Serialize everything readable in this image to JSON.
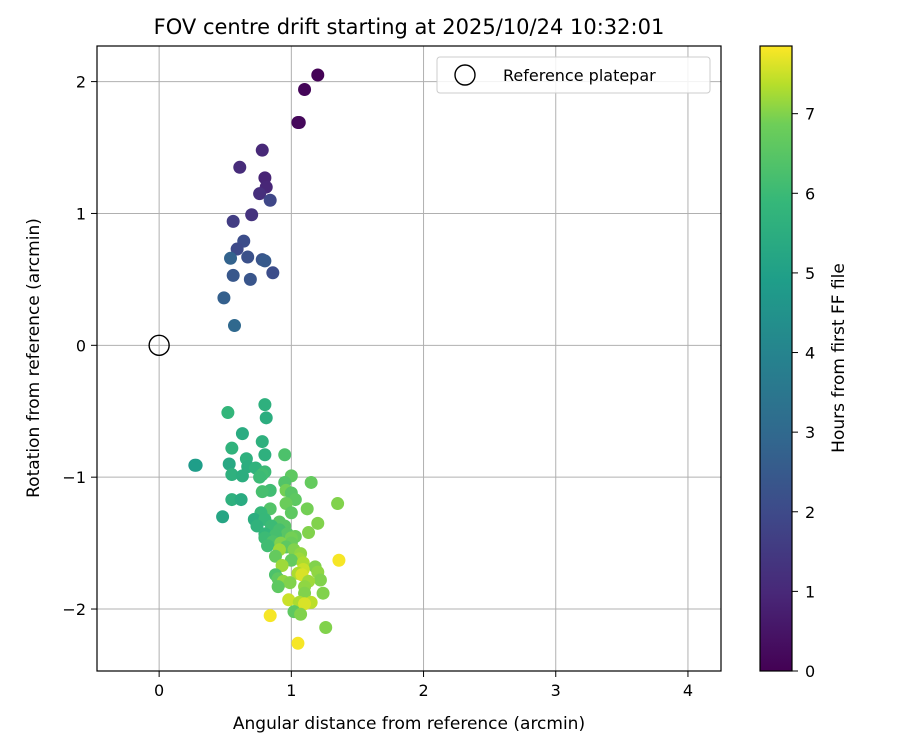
{
  "chart_data": {
    "type": "scatter",
    "title": "FOV centre drift starting at 2025/10/24 10:32:01",
    "xlabel": "Angular distance from reference (arcmin)",
    "ylabel": "Rotation from reference (arcmin)",
    "xlim": [
      -0.47,
      4.25
    ],
    "ylim": [
      -2.47,
      2.27
    ],
    "xticks": [
      0,
      1,
      2,
      3,
      4
    ],
    "yticks": [
      -2,
      -1,
      0,
      1,
      2
    ],
    "xtick_labels": [
      "0",
      "1",
      "2",
      "3",
      "4"
    ],
    "ytick_labels": [
      "−2",
      "−1",
      "0",
      "1",
      "2"
    ],
    "grid": true,
    "legend": {
      "placement": "top-right",
      "entries": [
        {
          "label": "Reference platepar",
          "marker": "open-circle"
        }
      ]
    },
    "reference_point": {
      "x": 0,
      "y": 0
    },
    "colorbar": {
      "label": "Hours from first FF file",
      "colormap": "viridis",
      "range": [
        0,
        7.85
      ],
      "ticks": [
        0,
        1,
        2,
        3,
        4,
        5,
        6,
        7
      ],
      "tick_labels": [
        "0",
        "1",
        "2",
        "3",
        "4",
        "5",
        "6",
        "7"
      ]
    },
    "points": [
      {
        "x": 1.2,
        "y": 2.05,
        "c": 0.05
      },
      {
        "x": 1.1,
        "y": 1.94,
        "c": 0.1
      },
      {
        "x": 1.05,
        "y": 1.69,
        "c": 0.15
      },
      {
        "x": 1.06,
        "y": 1.69,
        "c": 0.2
      },
      {
        "x": 0.78,
        "y": 1.48,
        "c": 1.0
      },
      {
        "x": 0.61,
        "y": 1.35,
        "c": 1.1
      },
      {
        "x": 0.8,
        "y": 1.27,
        "c": 0.9
      },
      {
        "x": 0.81,
        "y": 1.2,
        "c": 0.95
      },
      {
        "x": 0.76,
        "y": 1.15,
        "c": 1.2
      },
      {
        "x": 0.84,
        "y": 1.1,
        "c": 1.9
      },
      {
        "x": 0.7,
        "y": 0.99,
        "c": 1.3
      },
      {
        "x": 0.56,
        "y": 0.94,
        "c": 1.6
      },
      {
        "x": 0.64,
        "y": 0.79,
        "c": 2.1
      },
      {
        "x": 0.59,
        "y": 0.73,
        "c": 2.0
      },
      {
        "x": 0.67,
        "y": 0.67,
        "c": 2.2
      },
      {
        "x": 0.54,
        "y": 0.66,
        "c": 2.8
      },
      {
        "x": 0.78,
        "y": 0.65,
        "c": 2.3
      },
      {
        "x": 0.8,
        "y": 0.64,
        "c": 2.5
      },
      {
        "x": 0.86,
        "y": 0.55,
        "c": 2.1
      },
      {
        "x": 0.56,
        "y": 0.53,
        "c": 2.4
      },
      {
        "x": 0.69,
        "y": 0.5,
        "c": 2.35
      },
      {
        "x": 0.49,
        "y": 0.36,
        "c": 2.7
      },
      {
        "x": 0.57,
        "y": 0.15,
        "c": 3.0
      },
      {
        "x": 0.8,
        "y": -0.45,
        "c": 5.6
      },
      {
        "x": 0.52,
        "y": -0.51,
        "c": 5.8
      },
      {
        "x": 0.81,
        "y": -0.55,
        "c": 5.5
      },
      {
        "x": 0.63,
        "y": -0.67,
        "c": 5.4
      },
      {
        "x": 0.78,
        "y": -0.73,
        "c": 5.6
      },
      {
        "x": 0.55,
        "y": -0.78,
        "c": 5.7
      },
      {
        "x": 0.8,
        "y": -0.83,
        "c": 5.6
      },
      {
        "x": 0.95,
        "y": -0.83,
        "c": 6.3
      },
      {
        "x": 0.66,
        "y": -0.86,
        "c": 5.6
      },
      {
        "x": 0.27,
        "y": -0.91,
        "c": 4.7
      },
      {
        "x": 0.28,
        "y": -0.91,
        "c": 4.9
      },
      {
        "x": 0.53,
        "y": -0.9,
        "c": 5.3
      },
      {
        "x": 0.67,
        "y": -0.92,
        "c": 5.5
      },
      {
        "x": 0.73,
        "y": -0.93,
        "c": 5.7
      },
      {
        "x": 0.8,
        "y": -0.96,
        "c": 6.0
      },
      {
        "x": 0.78,
        "y": -0.98,
        "c": 6.1
      },
      {
        "x": 0.55,
        "y": -0.98,
        "c": 5.6
      },
      {
        "x": 0.63,
        "y": -0.99,
        "c": 5.5
      },
      {
        "x": 1.0,
        "y": -0.99,
        "c": 6.6
      },
      {
        "x": 0.76,
        "y": -1.0,
        "c": 6.0
      },
      {
        "x": 0.95,
        "y": -1.04,
        "c": 6.4
      },
      {
        "x": 1.15,
        "y": -1.04,
        "c": 6.7
      },
      {
        "x": 0.84,
        "y": -1.1,
        "c": 6.1
      },
      {
        "x": 0.96,
        "y": -1.1,
        "c": 6.9
      },
      {
        "x": 0.78,
        "y": -1.11,
        "c": 6.2
      },
      {
        "x": 1.0,
        "y": -1.12,
        "c": 6.5
      },
      {
        "x": 0.55,
        "y": -1.17,
        "c": 5.6
      },
      {
        "x": 0.62,
        "y": -1.17,
        "c": 5.4
      },
      {
        "x": 1.03,
        "y": -1.17,
        "c": 6.6
      },
      {
        "x": 0.96,
        "y": -1.2,
        "c": 6.8
      },
      {
        "x": 1.35,
        "y": -1.2,
        "c": 7.0
      },
      {
        "x": 0.84,
        "y": -1.24,
        "c": 6.4
      },
      {
        "x": 1.12,
        "y": -1.24,
        "c": 6.9
      },
      {
        "x": 0.77,
        "y": -1.27,
        "c": 5.9
      },
      {
        "x": 1.0,
        "y": -1.27,
        "c": 6.6
      },
      {
        "x": 0.48,
        "y": -1.3,
        "c": 5.2
      },
      {
        "x": 0.72,
        "y": -1.32,
        "c": 5.5
      },
      {
        "x": 0.8,
        "y": -1.32,
        "c": 5.9
      },
      {
        "x": 0.91,
        "y": -1.34,
        "c": 6.5
      },
      {
        "x": 1.2,
        "y": -1.35,
        "c": 7.0
      },
      {
        "x": 0.74,
        "y": -1.37,
        "c": 5.7
      },
      {
        "x": 0.85,
        "y": -1.37,
        "c": 6.0
      },
      {
        "x": 0.95,
        "y": -1.37,
        "c": 6.5
      },
      {
        "x": 0.91,
        "y": -1.4,
        "c": 6.2
      },
      {
        "x": 1.13,
        "y": -1.42,
        "c": 7.0
      },
      {
        "x": 0.8,
        "y": -1.43,
        "c": 5.8
      },
      {
        "x": 0.97,
        "y": -1.43,
        "c": 6.5
      },
      {
        "x": 0.88,
        "y": -1.44,
        "c": 6.2
      },
      {
        "x": 1.03,
        "y": -1.45,
        "c": 6.8
      },
      {
        "x": 0.8,
        "y": -1.46,
        "c": 6.0
      },
      {
        "x": 1.0,
        "y": -1.46,
        "c": 6.9
      },
      {
        "x": 0.86,
        "y": -1.49,
        "c": 6.3
      },
      {
        "x": 0.92,
        "y": -1.5,
        "c": 7.0
      },
      {
        "x": 1.0,
        "y": -1.5,
        "c": 6.8
      },
      {
        "x": 0.82,
        "y": -1.52,
        "c": 6.1
      },
      {
        "x": 0.96,
        "y": -1.53,
        "c": 6.6
      },
      {
        "x": 0.91,
        "y": -1.55,
        "c": 7.2
      },
      {
        "x": 1.02,
        "y": -1.55,
        "c": 7.0
      },
      {
        "x": 1.07,
        "y": -1.58,
        "c": 7.1
      },
      {
        "x": 0.88,
        "y": -1.6,
        "c": 6.7
      },
      {
        "x": 1.06,
        "y": -1.62,
        "c": 7.2
      },
      {
        "x": 1.36,
        "y": -1.63,
        "c": 7.8
      },
      {
        "x": 1.0,
        "y": -1.63,
        "c": 6.7
      },
      {
        "x": 1.09,
        "y": -1.65,
        "c": 7.3
      },
      {
        "x": 0.93,
        "y": -1.67,
        "c": 7.2
      },
      {
        "x": 1.18,
        "y": -1.68,
        "c": 7.0
      },
      {
        "x": 1.09,
        "y": -1.7,
        "c": 7.5
      },
      {
        "x": 1.2,
        "y": -1.72,
        "c": 7.1
      },
      {
        "x": 1.05,
        "y": -1.73,
        "c": 7.3
      },
      {
        "x": 0.88,
        "y": -1.74,
        "c": 6.3
      },
      {
        "x": 1.08,
        "y": -1.74,
        "c": 7.6
      },
      {
        "x": 0.9,
        "y": -1.77,
        "c": 6.6
      },
      {
        "x": 1.22,
        "y": -1.78,
        "c": 7.0
      },
      {
        "x": 0.94,
        "y": -1.79,
        "c": 7.1
      },
      {
        "x": 1.13,
        "y": -1.79,
        "c": 7.2
      },
      {
        "x": 0.99,
        "y": -1.8,
        "c": 7.0
      },
      {
        "x": 0.9,
        "y": -1.83,
        "c": 6.6
      },
      {
        "x": 1.1,
        "y": -1.83,
        "c": 7.1
      },
      {
        "x": 1.1,
        "y": -1.88,
        "c": 7.0
      },
      {
        "x": 1.24,
        "y": -1.88,
        "c": 7.0
      },
      {
        "x": 0.98,
        "y": -1.93,
        "c": 7.5
      },
      {
        "x": 1.06,
        "y": -1.95,
        "c": 7.3
      },
      {
        "x": 1.15,
        "y": -1.95,
        "c": 7.4
      },
      {
        "x": 1.1,
        "y": -1.96,
        "c": 7.6
      },
      {
        "x": 1.02,
        "y": -2.02,
        "c": 6.6
      },
      {
        "x": 1.07,
        "y": -2.04,
        "c": 7.0
      },
      {
        "x": 0.84,
        "y": -2.05,
        "c": 7.8
      },
      {
        "x": 1.26,
        "y": -2.14,
        "c": 7.0
      },
      {
        "x": 1.05,
        "y": -2.26,
        "c": 7.8
      }
    ]
  }
}
